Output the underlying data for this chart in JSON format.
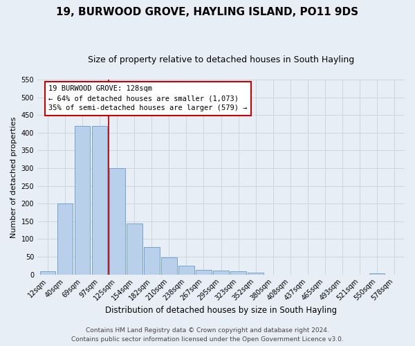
{
  "title": "19, BURWOOD GROVE, HAYLING ISLAND, PO11 9DS",
  "subtitle": "Size of property relative to detached houses in South Hayling",
  "xlabel": "Distribution of detached houses by size in South Hayling",
  "ylabel": "Number of detached properties",
  "categories": [
    "12sqm",
    "40sqm",
    "69sqm",
    "97sqm",
    "125sqm",
    "154sqm",
    "182sqm",
    "210sqm",
    "238sqm",
    "267sqm",
    "295sqm",
    "323sqm",
    "352sqm",
    "380sqm",
    "408sqm",
    "437sqm",
    "465sqm",
    "493sqm",
    "521sqm",
    "550sqm",
    "578sqm"
  ],
  "values": [
    10,
    200,
    420,
    420,
    300,
    143,
    78,
    48,
    25,
    13,
    12,
    9,
    5,
    0,
    0,
    0,
    0,
    0,
    0,
    3,
    0
  ],
  "bar_color": "#b8d0ea",
  "bar_edge_color": "#6699cc",
  "vline_x": 3.5,
  "annotation_title": "19 BURWOOD GROVE: 128sqm",
  "annotation_line1": "← 64% of detached houses are smaller (1,073)",
  "annotation_line2": "35% of semi-detached houses are larger (579) →",
  "annotation_box_color": "#ffffff",
  "annotation_box_edge_color": "#cc0000",
  "vline_color": "#cc0000",
  "ylim": [
    0,
    550
  ],
  "yticks": [
    0,
    50,
    100,
    150,
    200,
    250,
    300,
    350,
    400,
    450,
    500,
    550
  ],
  "grid_color": "#ccd5e0",
  "bg_color": "#e8eef5",
  "footer_line1": "Contains HM Land Registry data © Crown copyright and database right 2024.",
  "footer_line2": "Contains public sector information licensed under the Open Government Licence v3.0.",
  "title_fontsize": 11,
  "subtitle_fontsize": 9,
  "xlabel_fontsize": 8.5,
  "ylabel_fontsize": 8,
  "tick_fontsize": 7,
  "annotation_fontsize": 7.5,
  "footer_fontsize": 6.5
}
